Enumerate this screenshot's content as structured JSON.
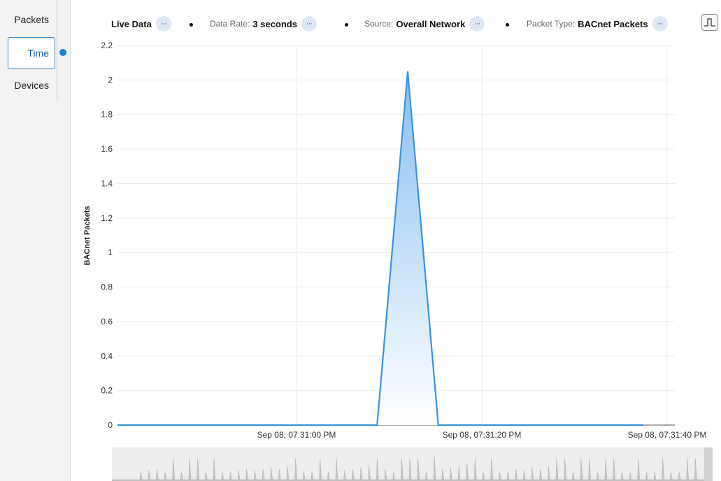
{
  "sidebar": {
    "tabs": [
      {
        "label": "Packets"
      },
      {
        "label": "Time"
      },
      {
        "label": "Devices"
      }
    ],
    "active": "Time"
  },
  "toolbar": {
    "live": {
      "value": "Live Data"
    },
    "data_rate": {
      "label": "Data Rate:",
      "value": "3 seconds"
    },
    "source": {
      "label": "Source:",
      "value": "Overall Network"
    },
    "packet_type": {
      "label": "Packet Type:",
      "value": "BACnet Packets"
    },
    "more_glyph": "···"
  },
  "colors": {
    "accent": "#1680d4",
    "series": "#3a93e0",
    "fill_top": "#7fbaf0",
    "fill_bottom": "#ffffff"
  },
  "chart_data": {
    "type": "area",
    "ylabel": "BACnet Packets",
    "xlabel": "",
    "ylim": [
      0,
      2.2
    ],
    "yticks": [
      "0",
      "0.2",
      "0.4",
      "0.6",
      "0.8",
      "1",
      "1.2",
      "1.4",
      "1.6",
      "1.8",
      "2",
      "2.2"
    ],
    "xticks": [
      "Sep 08, 07:31:00 PM",
      "Sep 08, 07:31:20 PM",
      "Sep 08, 07:31:40 PM"
    ],
    "x_seconds": [
      -20,
      0,
      8.7,
      12,
      15.3,
      24,
      40,
      43
    ],
    "values": [
      0,
      0,
      0,
      2.05,
      0,
      0,
      0,
      0
    ],
    "grid": true,
    "overview_spikes": [
      0.3,
      0.35,
      0.4,
      0.3,
      0.8,
      0.3,
      0.8,
      0.8,
      0.3,
      0.8,
      0.3,
      0.3,
      0.35,
      0.4,
      0.35,
      0.4,
      0.45,
      0.4,
      0.5,
      0.8,
      0.3,
      0.3,
      0.8,
      0.3,
      0.8,
      0.35,
      0.4,
      0.45,
      0.5,
      0.8,
      0.4,
      0.3,
      0.8,
      0.8,
      0.8,
      0.3,
      0.9,
      0.4,
      0.45,
      0.5,
      0.6,
      0.8,
      0.3,
      0.8,
      0.3,
      0.3,
      0.4,
      0.35,
      0.45,
      0.4,
      0.5,
      0.8,
      0.8,
      0.3,
      0.8,
      0.8,
      0.3,
      0.8,
      0.8,
      0.3,
      0.3,
      0.8,
      0.3,
      0.3,
      0.8,
      0.3,
      0.3,
      0.8,
      0.8
    ]
  }
}
